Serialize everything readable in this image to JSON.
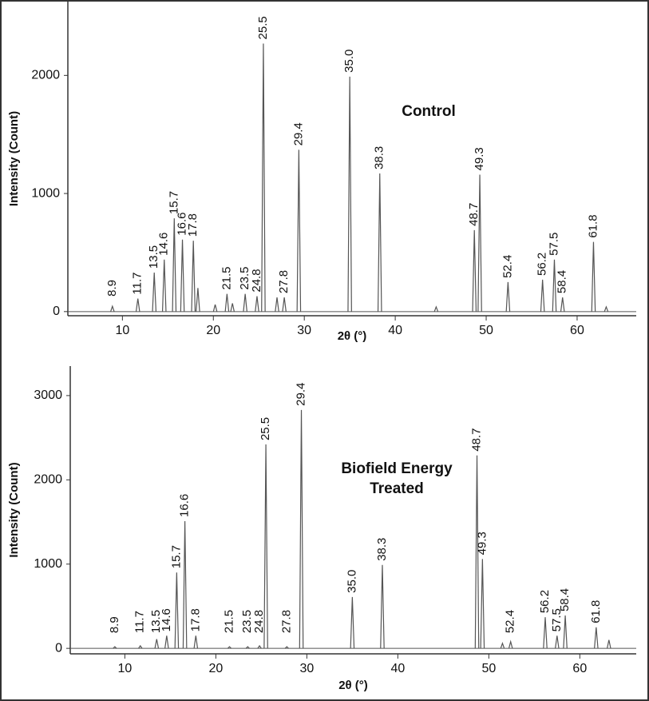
{
  "chart_data": [
    {
      "type": "stem",
      "annotation": [
        "Control"
      ],
      "xlabel": "2θ (°)",
      "ylabel": "Intensity (Count)",
      "x": [
        8.9,
        11.7,
        13.5,
        14.6,
        15.7,
        16.6,
        17.8,
        18.3,
        20.2,
        21.5,
        22.1,
        23.5,
        24.8,
        25.5,
        27.0,
        27.8,
        29.4,
        35.0,
        38.3,
        44.5,
        48.7,
        49.3,
        52.4,
        56.2,
        57.5,
        58.4,
        61.8,
        63.2
      ],
      "values": [
        45,
        110,
        330,
        440,
        790,
        610,
        600,
        200,
        60,
        150,
        70,
        150,
        130,
        2270,
        120,
        120,
        1370,
        1990,
        1170,
        40,
        690,
        1160,
        250,
        270,
        440,
        120,
        590,
        40
      ],
      "peak_labels": [
        "8.9",
        "11.7",
        "13.5",
        "14.6",
        "15.7",
        "16.6",
        "17.8",
        null,
        null,
        "21.5",
        null,
        "23.5",
        "24.8",
        "25.5",
        null,
        "27.8",
        "29.4",
        "35.0",
        "38.3",
        null,
        "48.7",
        "49.3",
        "52.4",
        "56.2",
        "57.5",
        "58.4",
        "61.8",
        null
      ],
      "color": "#555555",
      "xlim": [
        4,
        66.5
      ],
      "xticks": [
        10,
        20,
        30,
        40,
        50,
        60
      ],
      "ylim": [
        -35,
        2625
      ],
      "yticks": [
        0,
        1000,
        2000
      ]
    },
    {
      "type": "stem",
      "annotation": [
        "Biofield Energy",
        "Treated"
      ],
      "xlabel": "2θ (°)",
      "ylabel": "Intensity (Count)",
      "x": [
        8.9,
        11.7,
        13.5,
        14.6,
        15.7,
        16.6,
        17.8,
        21.5,
        23.5,
        24.8,
        25.5,
        27.8,
        29.4,
        35.0,
        38.3,
        48.7,
        49.3,
        51.5,
        52.4,
        56.2,
        57.5,
        58.4,
        61.8,
        63.2
      ],
      "values": [
        20,
        30,
        110,
        150,
        900,
        1510,
        150,
        20,
        20,
        30,
        2420,
        20,
        2830,
        610,
        990,
        2290,
        1060,
        60,
        80,
        370,
        150,
        390,
        250,
        100
      ],
      "peak_labels": [
        "8.9",
        "11.7",
        "13.5",
        "14.6",
        "15.7",
        "16.6",
        "17.8",
        "21.5",
        "23.5",
        "24.8",
        "25.5",
        "27.8",
        "29.4",
        "35.0",
        "38.3",
        "48.7",
        "49.3",
        null,
        "52.4",
        "56.2",
        "57.5",
        "58.4",
        "61.8",
        null
      ],
      "color": "#555555",
      "xlim": [
        4,
        66.2
      ],
      "xticks": [
        10,
        20,
        30,
        40,
        50,
        60
      ],
      "ylim": [
        -65,
        3350
      ],
      "yticks": [
        0,
        1000,
        2000,
        3000
      ]
    }
  ]
}
